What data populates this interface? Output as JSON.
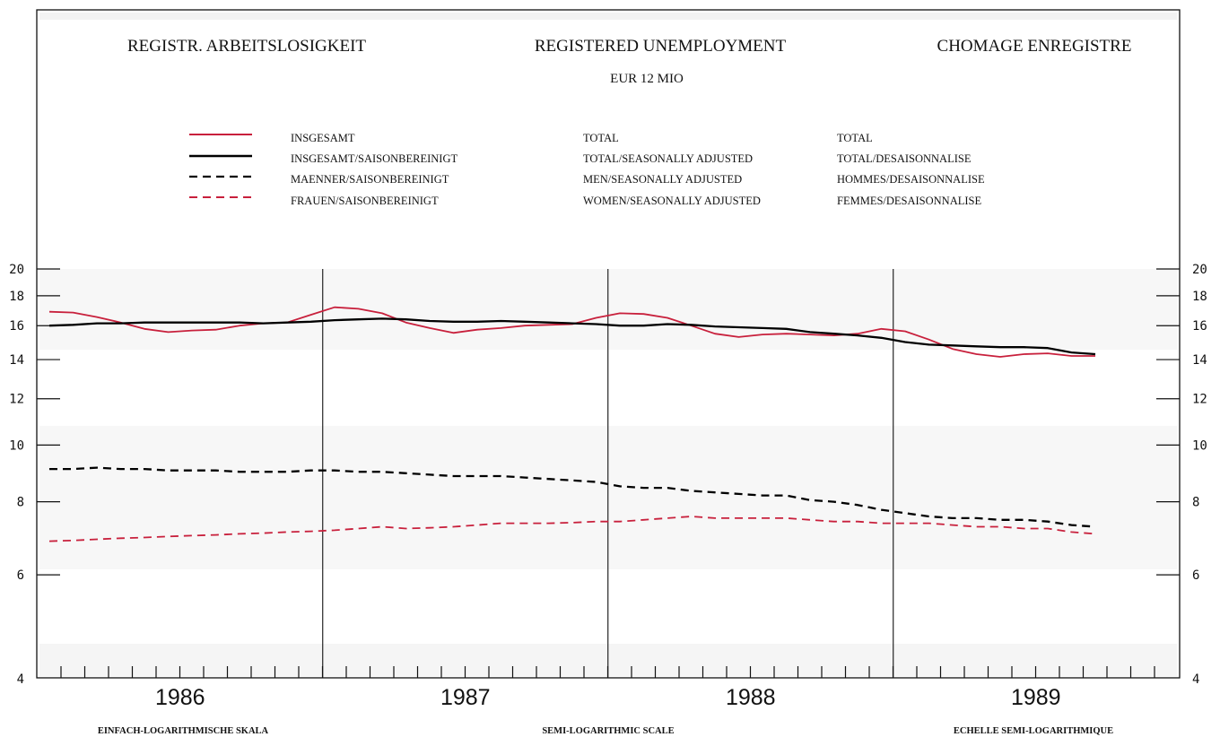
{
  "header": {
    "title_de": "REGISTR. ARBEITSLOSIGKEIT",
    "title_en": "REGISTERED UNEMPLOYMENT",
    "title_fr": "CHOMAGE ENREGISTRE",
    "subtitle": "EUR 12  MIO"
  },
  "legend": [
    {
      "de": "INSGESAMT",
      "en": "TOTAL",
      "fr": "TOTAL",
      "color": "#c8203c",
      "dash": "solid"
    },
    {
      "de": "INSGESAMT/SAISONBEREINIGT",
      "en": "TOTAL/SEASONALLY ADJUSTED",
      "fr": "TOTAL/DESAISONNALISE",
      "color": "#000000",
      "dash": "solid"
    },
    {
      "de": "MAENNER/SAISONBEREINIGT",
      "en": "MEN/SEASONALLY ADJUSTED",
      "fr": "HOMMES/DESAISONNALISE",
      "color": "#000000",
      "dash": "dashed"
    },
    {
      "de": "FRAUEN/SAISONBEREINIGT",
      "en": "WOMEN/SEASONALLY ADJUSTED",
      "fr": "FEMMES/DESAISONNALISE",
      "color": "#c8203c",
      "dash": "dashed"
    }
  ],
  "footer": {
    "de": "EINFACH-LOGARITHMISCHE SKALA",
    "en": "SEMI-LOGARITHMIC SCALE",
    "fr": "ECHELLE SEMI-LOGARITHMIQUE"
  },
  "chart_data": {
    "type": "line",
    "y_scale": "log",
    "ylim": [
      4,
      20
    ],
    "y_ticks": [
      4,
      6,
      8,
      10,
      12,
      14,
      16,
      18,
      20
    ],
    "x_period": "monthly, 1986-01 to 1989-08",
    "years": [
      "1986",
      "1987",
      "1988",
      "1989"
    ],
    "grid": false,
    "legend_position": "top",
    "series": [
      {
        "name": "INSGESAMT",
        "color": "#c8203c",
        "dash": "solid",
        "values": [
          16.9,
          16.85,
          16.55,
          16.2,
          15.8,
          15.6,
          15.7,
          15.75,
          16.0,
          16.15,
          16.2,
          16.7,
          17.2,
          17.1,
          16.8,
          16.2,
          15.85,
          15.55,
          15.75,
          15.85,
          16.0,
          16.05,
          16.1,
          16.5,
          16.8,
          16.75,
          16.5,
          16.0,
          15.5,
          15.3,
          15.45,
          15.5,
          15.45,
          15.4,
          15.5,
          15.8,
          15.65,
          15.15,
          14.6,
          14.3,
          14.15,
          14.3,
          14.35,
          14.2,
          14.2
        ]
      },
      {
        "name": "INSGESAMT/SAISONBEREINIGT",
        "color": "#000000",
        "dash": "solid",
        "values": [
          16.0,
          16.05,
          16.15,
          16.15,
          16.2,
          16.2,
          16.2,
          16.2,
          16.2,
          16.15,
          16.2,
          16.25,
          16.35,
          16.4,
          16.45,
          16.4,
          16.3,
          16.25,
          16.25,
          16.3,
          16.25,
          16.2,
          16.15,
          16.1,
          16.0,
          16.0,
          16.1,
          16.05,
          15.95,
          15.9,
          15.85,
          15.8,
          15.6,
          15.5,
          15.4,
          15.25,
          15.0,
          14.85,
          14.8,
          14.75,
          14.7,
          14.7,
          14.65,
          14.4,
          14.3
        ]
      },
      {
        "name": "MAENNER/SAISONBEREINIGT",
        "color": "#000000",
        "dash": "dashed",
        "values": [
          9.1,
          9.1,
          9.15,
          9.1,
          9.1,
          9.05,
          9.05,
          9.05,
          9.0,
          9.0,
          9.0,
          9.05,
          9.05,
          9.0,
          9.0,
          8.95,
          8.9,
          8.85,
          8.85,
          8.85,
          8.8,
          8.75,
          8.7,
          8.65,
          8.5,
          8.45,
          8.45,
          8.35,
          8.3,
          8.25,
          8.2,
          8.2,
          8.05,
          8.0,
          7.9,
          7.75,
          7.65,
          7.55,
          7.5,
          7.5,
          7.45,
          7.45,
          7.4,
          7.3,
          7.25
        ]
      },
      {
        "name": "FRAUEN/SAISONBEREINIGT",
        "color": "#c8203c",
        "dash": "dashed",
        "values": [
          6.85,
          6.87,
          6.9,
          6.93,
          6.95,
          6.98,
          7.0,
          7.02,
          7.05,
          7.07,
          7.1,
          7.12,
          7.15,
          7.2,
          7.25,
          7.2,
          7.22,
          7.25,
          7.3,
          7.35,
          7.35,
          7.35,
          7.37,
          7.4,
          7.4,
          7.45,
          7.5,
          7.55,
          7.5,
          7.5,
          7.5,
          7.5,
          7.45,
          7.4,
          7.4,
          7.35,
          7.35,
          7.35,
          7.3,
          7.25,
          7.25,
          7.2,
          7.2,
          7.1,
          7.05
        ]
      }
    ]
  }
}
